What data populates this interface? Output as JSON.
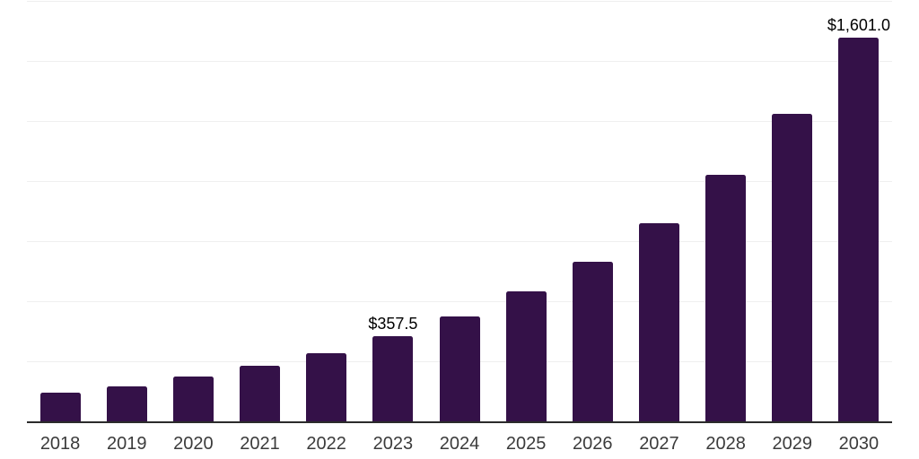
{
  "chart": {
    "background_color": "#ffffff",
    "bar_color": "#341148",
    "axis_line_color": "#2b2b2b",
    "gridline_color": "#efefef",
    "year_label_color": "#3b3b3b",
    "value_label_color": "#000000"
  },
  "chart_data": {
    "type": "bar",
    "categories": [
      "2018",
      "2019",
      "2020",
      "2021",
      "2022",
      "2023",
      "2024",
      "2025",
      "2026",
      "2027",
      "2028",
      "2029",
      "2030"
    ],
    "values": [
      123,
      151,
      191,
      236,
      288,
      357.5,
      442,
      545,
      669,
      830,
      1030,
      1285,
      1601
    ],
    "labeled_values": [
      {
        "category": "2023",
        "text": "$357.5"
      },
      {
        "category": "2030",
        "text": "$1,601.0"
      }
    ],
    "xlabel": "",
    "ylabel": "",
    "ylim": [
      0,
      1750
    ],
    "gridline_interval": 250,
    "grid": "horizontal-only",
    "y_tick_labels_visible": false,
    "legend_position": "none"
  }
}
